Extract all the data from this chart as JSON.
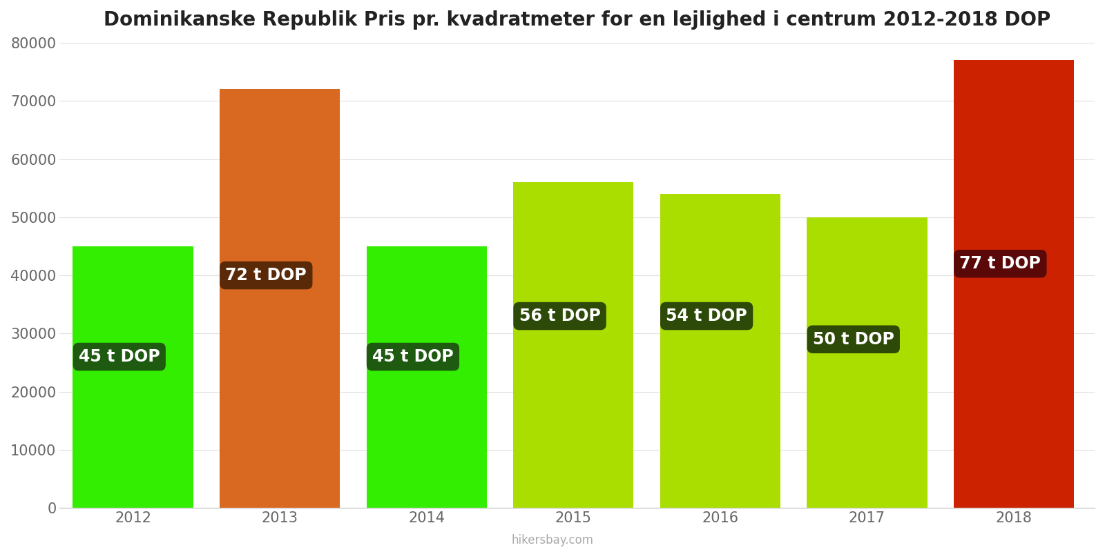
{
  "title": "Dominikanske Republik Pris pr. kvadratmeter for en lejlighed i centrum 2012-2018 DOP",
  "years": [
    2012,
    2013,
    2014,
    2015,
    2016,
    2017,
    2018
  ],
  "values": [
    45000,
    72000,
    45000,
    56000,
    54000,
    50000,
    77000
  ],
  "labels": [
    "45 t DOP",
    "72 t DOP",
    "45 t DOP",
    "56 t DOP",
    "54 t DOP",
    "50 t DOP",
    "77 t DOP"
  ],
  "bar_colors": [
    "#33ee00",
    "#d96820",
    "#33ee00",
    "#aadd00",
    "#aadd00",
    "#aadd00",
    "#cc2200"
  ],
  "label_bg_colors": [
    "#1e5a10",
    "#5a2a08",
    "#1e5a10",
    "#2e4a08",
    "#2e4a08",
    "#2e4a08",
    "#5a0808"
  ],
  "ylim": [
    0,
    80000
  ],
  "yticks": [
    0,
    10000,
    20000,
    30000,
    40000,
    50000,
    60000,
    70000,
    80000
  ],
  "title_fontsize": 20,
  "label_fontsize": 17,
  "tick_fontsize": 15,
  "watermark": "hikersbay.com",
  "background_color": "#ffffff",
  "label_y_positions": [
    26000,
    40000,
    26000,
    33000,
    33000,
    29000,
    42000
  ]
}
